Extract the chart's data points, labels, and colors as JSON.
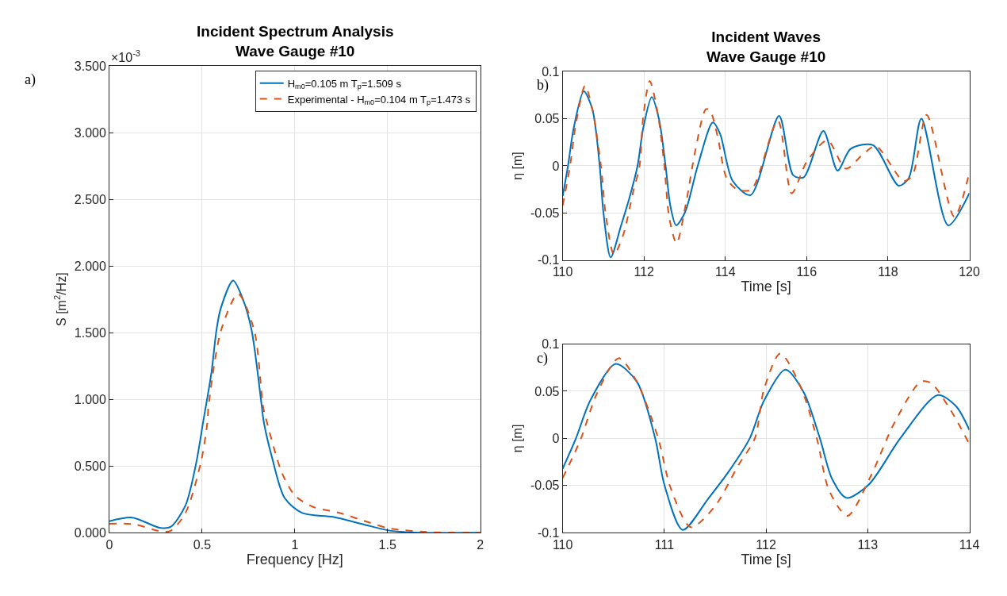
{
  "chart_data": [
    {
      "type": "line",
      "title": "Incident Spectrum Analysis\nWave Gauge #10",
      "xlabel": "Frequency [Hz]",
      "ylabel": "S [m$^{2}$/Hz]",
      "annotations": [
        "a)",
        "×10$^{-3}$"
      ],
      "xlim": [
        0,
        2
      ],
      "xticks": [
        0,
        0.5,
        1,
        1.5,
        2
      ],
      "ylim": [
        0,
        3.5
      ],
      "yticks": [
        {
          "value": 0,
          "label": "0.000"
        },
        {
          "value": 0.5,
          "label": "0.500"
        },
        {
          "value": 1,
          "label": "1.000"
        },
        {
          "value": 1.5,
          "label": "1.500"
        },
        {
          "value": 2,
          "label": "2.000"
        },
        {
          "value": 2.5,
          "label": "2.500"
        },
        {
          "value": 3,
          "label": "3.000"
        },
        {
          "value": 3.5,
          "label": "3.500"
        }
      ],
      "grid": true,
      "legend": "top right",
      "marker": "none",
      "series": [
        {
          "name": "H$_{m0}$=0.105 m T$_{p}$=1.509 s",
          "color": "#0072bd",
          "line_style": "solid",
          "x": [
            0,
            0.123,
            0.27,
            0.33,
            0.41,
            0.466,
            0.506,
            0.55,
            0.577,
            0.6,
            0.667,
            0.72,
            0.767,
            0.822,
            0.832,
            0.877,
            0.945,
            1.04,
            1.205,
            1.37,
            1.5,
            1.64,
            2.0
          ],
          "values": [
            0.087,
            0.114,
            0.038,
            0.044,
            0.205,
            0.51,
            0.835,
            1.2,
            1.517,
            1.68,
            1.89,
            1.75,
            1.517,
            0.943,
            0.835,
            0.564,
            0.261,
            0.148,
            0.119,
            0.063,
            0.019,
            0.002,
            0
          ]
        },
        {
          "name": "Experimental - H$_{m0}$=0.104 m T$_{p}$=1.473 s",
          "color": "#d95319",
          "line_style": "dashed",
          "x": [
            0,
            0.137,
            0.274,
            0.33,
            0.41,
            0.493,
            0.529,
            0.534,
            0.602,
            0.694,
            0.781,
            0.829,
            0.848,
            0.93,
            1.0,
            1.096,
            1.233,
            1.37,
            1.507,
            1.71,
            2.0
          ],
          "values": [
            0.068,
            0.063,
            0.011,
            0.015,
            0.148,
            0.527,
            0.835,
            0.943,
            1.517,
            1.79,
            1.517,
            0.943,
            0.835,
            0.45,
            0.28,
            0.195,
            0.152,
            0.091,
            0.034,
            0.006,
            0
          ]
        }
      ]
    },
    {
      "type": "line",
      "title": "Incident Waves\nWave Gauge #10",
      "xlabel": "Time [s]",
      "ylabel": "η [m]",
      "annotations": [
        "b)"
      ],
      "xlim": [
        110,
        120
      ],
      "xticks": [
        110,
        112,
        114,
        116,
        118,
        120
      ],
      "ylim": [
        -0.1,
        0.1
      ],
      "yticks": [
        -0.1,
        -0.05,
        0,
        0.05,
        0.1
      ],
      "grid": true,
      "marker": "none",
      "series": [
        {
          "color": "#0072bd",
          "line_style": "solid",
          "x": [
            110,
            110.13,
            110.27,
            110.52,
            110.73,
            110.91,
            111.0,
            111.18,
            111.43,
            111.64,
            111.84,
            111.98,
            112.19,
            112.37,
            112.53,
            112.65,
            112.79,
            113.01,
            113.32,
            113.69,
            113.87,
            114.18,
            114.62,
            115.32,
            115.67,
            115.93,
            116.41,
            116.76,
            117.08,
            117.63,
            118.26,
            118.51,
            118.82,
            119.48,
            120
          ],
          "values": [
            -0.032,
            0,
            0.04,
            0.079,
            0.06,
            0,
            -0.049,
            -0.097,
            -0.064,
            -0.034,
            0,
            0.04,
            0.073,
            0.049,
            0,
            -0.043,
            -0.063,
            -0.049,
            0,
            0.046,
            0.034,
            -0.016,
            -0.031,
            0.053,
            -0.01,
            -0.012,
            0.037,
            -0.005,
            0.018,
            0.022,
            -0.021,
            -0.013,
            0.05,
            -0.063,
            -0.029
          ]
        },
        {
          "color": "#d95319",
          "line_style": "dashed",
          "x": [
            110,
            110.18,
            110.33,
            110.55,
            110.73,
            110.94,
            111.06,
            111.26,
            111.49,
            111.73,
            111.89,
            111.98,
            112.14,
            112.34,
            112.5,
            112.62,
            112.8,
            113.03,
            113.26,
            113.52,
            113.62,
            113.81,
            114.03,
            114.29,
            114.64,
            115.29,
            115.63,
            116.01,
            116.51,
            116.96,
            117.38,
            117.7,
            118.38,
            118.6,
            118.95,
            119.63,
            120
          ],
          "values": [
            -0.042,
            0,
            0.046,
            0.085,
            0.06,
            0,
            -0.052,
            -0.094,
            -0.073,
            -0.028,
            0,
            0.052,
            0.09,
            0.055,
            0,
            -0.055,
            -0.082,
            -0.04,
            0.016,
            0.06,
            0.059,
            0.031,
            -0.013,
            -0.025,
            -0.025,
            0.048,
            -0.029,
            0.005,
            0.027,
            -0.003,
            0.012,
            0.021,
            -0.016,
            -0.01,
            0.054,
            -0.054,
            -0.007
          ]
        }
      ]
    },
    {
      "type": "line",
      "xlabel": "Time [s]",
      "ylabel": "η [m]",
      "annotations": [
        "c)"
      ],
      "xlim": [
        110,
        114
      ],
      "xticks": [
        110,
        111,
        112,
        113,
        114
      ],
      "ylim": [
        -0.1,
        0.1
      ],
      "yticks": [
        -0.1,
        -0.05,
        0,
        0.05,
        0.1
      ],
      "grid": true,
      "marker": "none",
      "series": [
        {
          "color": "#0072bd",
          "line_style": "solid",
          "x": [
            110,
            110.13,
            110.27,
            110.52,
            110.73,
            110.91,
            111.0,
            111.18,
            111.43,
            111.64,
            111.84,
            111.98,
            112.19,
            112.37,
            112.53,
            112.65,
            112.79,
            113.01,
            113.32,
            113.69,
            113.87,
            114
          ],
          "values": [
            -0.032,
            0,
            0.04,
            0.079,
            0.06,
            0,
            -0.049,
            -0.097,
            -0.064,
            -0.034,
            0,
            0.04,
            0.073,
            0.049,
            0,
            -0.043,
            -0.063,
            -0.049,
            0,
            0.046,
            0.034,
            0.009
          ]
        },
        {
          "color": "#d95319",
          "line_style": "dashed",
          "x": [
            110,
            110.18,
            110.33,
            110.55,
            110.73,
            110.94,
            111.06,
            111.26,
            111.49,
            111.73,
            111.89,
            111.98,
            112.14,
            112.34,
            112.5,
            112.62,
            112.8,
            113.03,
            113.26,
            113.52,
            113.62,
            113.81,
            114
          ],
          "values": [
            -0.042,
            0,
            0.046,
            0.085,
            0.06,
            0,
            -0.052,
            -0.094,
            -0.073,
            -0.028,
            0,
            0.052,
            0.09,
            0.055,
            0,
            -0.055,
            -0.082,
            -0.04,
            0.016,
            0.06,
            0.059,
            0.031,
            -0.006
          ]
        }
      ]
    }
  ]
}
